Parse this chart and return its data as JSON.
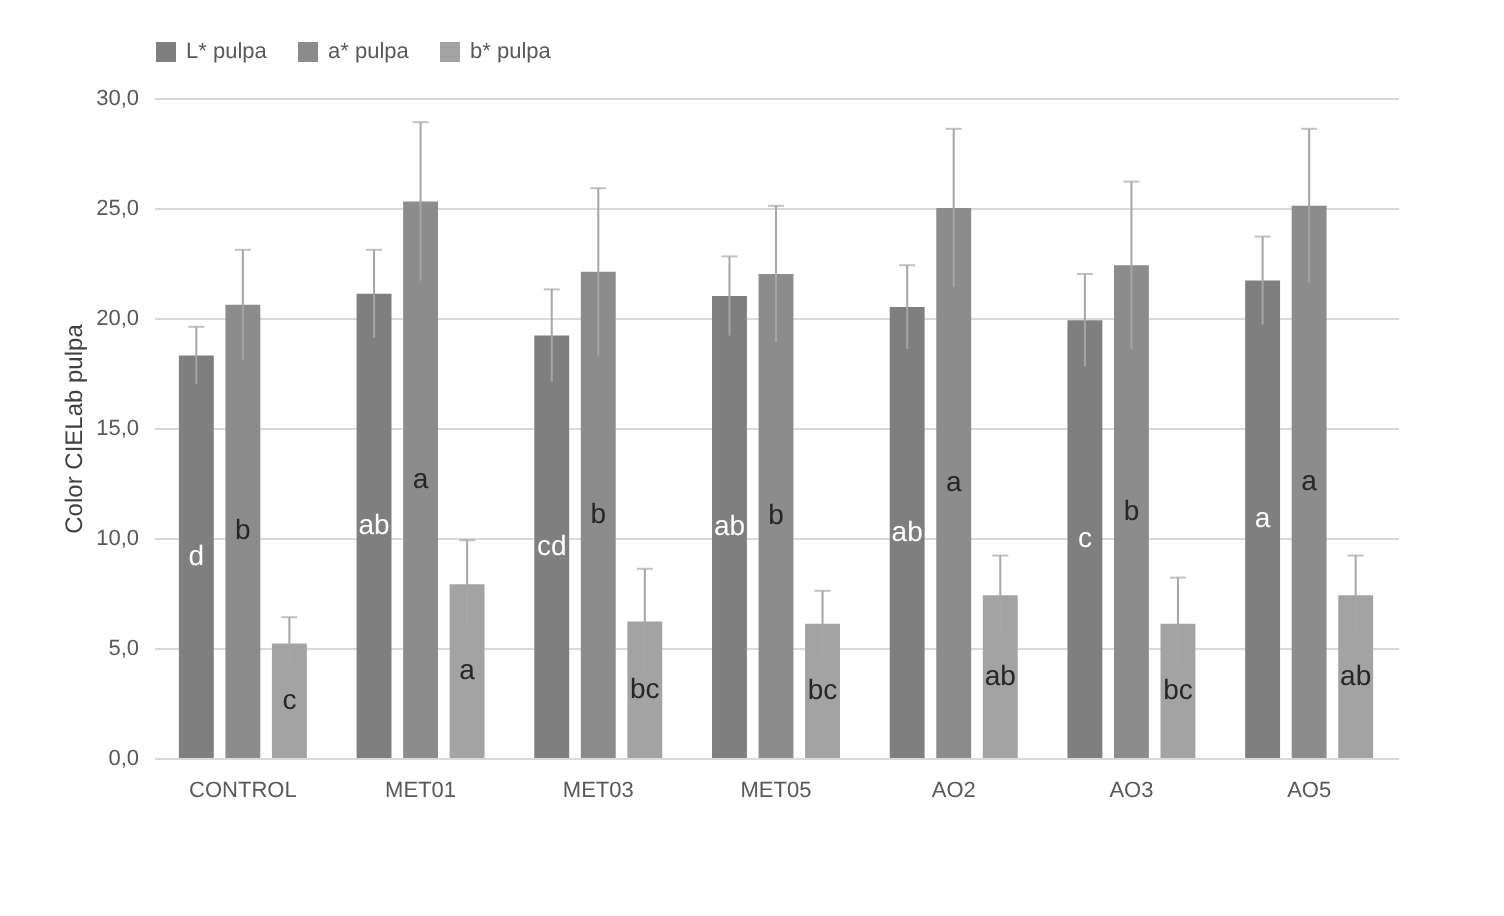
{
  "chart_data": {
    "type": "bar",
    "ylabel": "Color CIELab pulpa",
    "categories": [
      "CONTROL",
      "MET01",
      "MET03",
      "MET05",
      "AO2",
      "AO3",
      "AO5"
    ],
    "series": [
      {
        "name": "L* pulpa",
        "color": "#7f7f7f",
        "values": [
          18.3,
          21.1,
          19.2,
          21.0,
          20.5,
          19.9,
          21.7
        ],
        "errors": [
          1.3,
          2.0,
          2.1,
          1.8,
          1.9,
          2.1,
          2.0
        ],
        "value_labels": [
          "d",
          "ab",
          "cd",
          "ab",
          "ab",
          "c",
          "a"
        ]
      },
      {
        "name": "a* pulpa",
        "color": "#8c8c8c",
        "values": [
          20.6,
          25.3,
          22.1,
          22.0,
          25.0,
          22.4,
          25.1
        ],
        "errors": [
          2.5,
          3.6,
          3.8,
          3.1,
          3.6,
          3.8,
          3.5
        ],
        "value_labels": [
          "b",
          "a",
          "b",
          "b",
          "a",
          "b",
          "a"
        ]
      },
      {
        "name": "b* pulpa",
        "color": "#a3a3a3",
        "values": [
          5.2,
          7.9,
          6.2,
          6.1,
          7.4,
          6.1,
          7.4
        ],
        "errors": [
          1.2,
          2.0,
          2.4,
          1.5,
          1.8,
          2.1,
          1.8
        ],
        "value_labels": [
          "c",
          "a",
          "bc",
          "bc",
          "ab",
          "bc",
          "ab"
        ]
      }
    ],
    "ylim": [
      0,
      30
    ],
    "yticks": [
      {
        "value": 0,
        "label": "0,0"
      },
      {
        "value": 5,
        "label": "5,0"
      },
      {
        "value": 10,
        "label": "10,0"
      },
      {
        "value": 15,
        "label": "15,0"
      },
      {
        "value": 20,
        "label": "20,0"
      },
      {
        "value": 25,
        "label": "25,0"
      },
      {
        "value": 30,
        "label": "30,0"
      }
    ],
    "grid": "y",
    "legend": "top"
  }
}
